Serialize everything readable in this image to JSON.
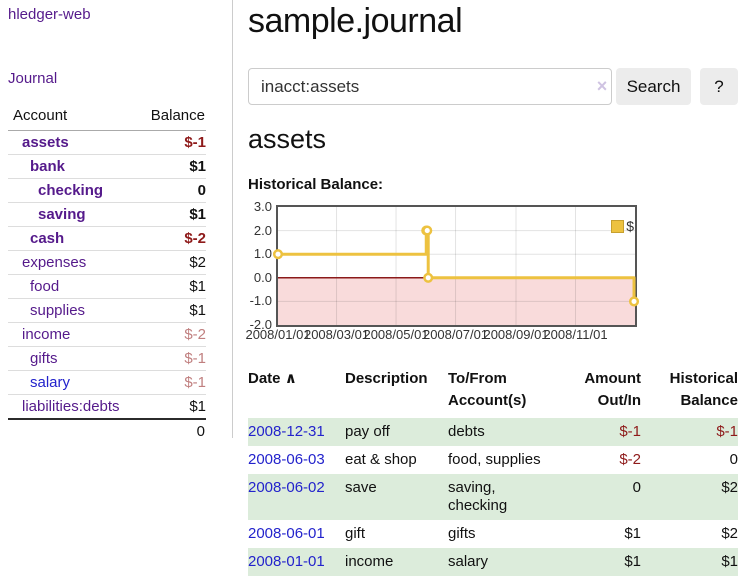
{
  "colors": {
    "accent_purple": "#551a8b",
    "link_blue": "#2323cc",
    "negative_red": "#8e1a1a",
    "negative_light_red": "#c07f7f",
    "row_green": "#dcecdb",
    "chart_line": "#edc240",
    "chart_negative_fill": "#f9dbdb",
    "chart_zero_line": "#8b1a1a"
  },
  "sidebar": {
    "brand": "hledger-web",
    "journal_link": "Journal",
    "accounts": {
      "header": {
        "account": "Account",
        "balance": "Balance"
      },
      "rows": [
        {
          "name": "assets",
          "balance": "$-1"
        },
        {
          "name": "bank",
          "balance": "$1"
        },
        {
          "name": "checking",
          "balance": "0"
        },
        {
          "name": "saving",
          "balance": "$1"
        },
        {
          "name": "cash",
          "balance": "$-2"
        },
        {
          "name": "expenses",
          "balance": "$2"
        },
        {
          "name": "food",
          "balance": "$1"
        },
        {
          "name": "supplies",
          "balance": "$1"
        },
        {
          "name": "income",
          "balance": "$-2"
        },
        {
          "name": "gifts",
          "balance": "$-1"
        },
        {
          "name": "salary",
          "balance": "$-1"
        },
        {
          "name": "liabilities:debts",
          "balance": "$1"
        }
      ],
      "total": "0"
    }
  },
  "main": {
    "title": "sample.journal",
    "search": {
      "value": "inacct:assets",
      "clear_icon": "×",
      "search_button": "Search",
      "help_button": "?"
    },
    "heading": "assets",
    "chart_label": "Historical Balance:",
    "register": {
      "headers": {
        "date": "Date",
        "sort_indicator": "∧",
        "description": "Description",
        "accounts_line1": "To/From",
        "accounts_line2": "Account(s)",
        "amount_line1": "Amount",
        "amount_line2": "Out/In",
        "balance_line1": "Historical",
        "balance_line2": "Balance"
      },
      "rows": [
        {
          "date": "2008-12-31",
          "description": "pay off",
          "accounts": "debts",
          "amount": "$-1",
          "balance": "$-1"
        },
        {
          "date": "2008-06-03",
          "description": "eat & shop",
          "accounts": "food, supplies",
          "amount": "$-2",
          "balance": "0"
        },
        {
          "date": "2008-06-02",
          "description": "save",
          "accounts": "saving, checking",
          "amount": "0",
          "balance": "$2"
        },
        {
          "date": "2008-06-01",
          "description": "gift",
          "accounts": "gifts",
          "amount": "$1",
          "balance": "$2"
        },
        {
          "date": "2008-01-01",
          "description": "income",
          "accounts": "salary",
          "amount": "$1",
          "balance": "$1"
        }
      ]
    }
  },
  "chart_data": {
    "type": "line",
    "step": true,
    "title": "Historical Balance:",
    "series": [
      {
        "name": "$",
        "color": "#edc240",
        "points": [
          [
            "2008-01-01",
            1
          ],
          [
            "2008-06-01",
            2
          ],
          [
            "2008-06-02",
            2
          ],
          [
            "2008-06-03",
            0
          ],
          [
            "2008-12-31",
            -1
          ]
        ]
      }
    ],
    "x_range": [
      "2008-01-01",
      "2009-01-01"
    ],
    "x_tick_labels": [
      "2008/01/01",
      "2008/03/01",
      "2008/05/01",
      "2008/07/01",
      "2008/09/01",
      "2008/11/01"
    ],
    "y_ticks": [
      3.0,
      2.0,
      1.0,
      0.0,
      -1.0,
      -2.0
    ],
    "y_tick_labels": [
      "3.0",
      "2.0",
      "1.0",
      "0.0",
      "-1.0",
      "-2.0"
    ],
    "ylim": [
      -2,
      3
    ],
    "grid": true,
    "legend": {
      "label": "$",
      "position": "top-right"
    },
    "negative_region_fill": "#f9dbdb",
    "zero_line_color": "#8b1a1a"
  }
}
